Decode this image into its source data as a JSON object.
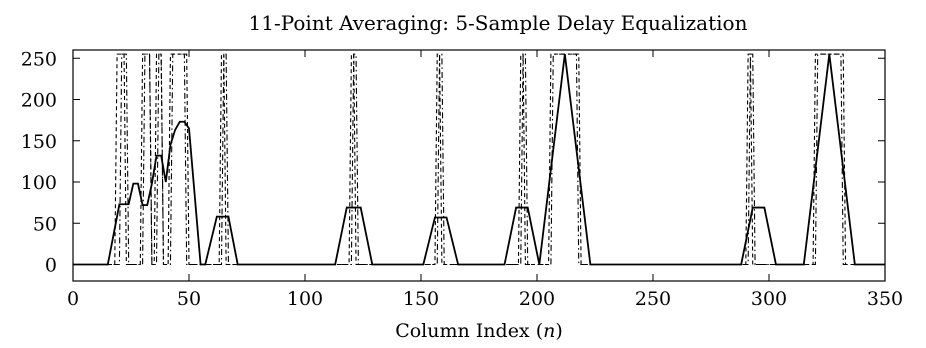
{
  "chart_data": {
    "type": "line",
    "title": "11-Point Averaging: 5-Sample Delay Equalization",
    "xlabel": "Column Index (",
    "xlabel_var": "n",
    "xlabel_close": ")",
    "ylabel": "",
    "xlim": [
      0,
      350
    ],
    "ylim": [
      -20,
      260
    ],
    "xticks": [
      0,
      50,
      100,
      150,
      200,
      250,
      300,
      350
    ],
    "yticks": [
      0,
      50,
      100,
      150,
      200,
      250
    ],
    "grid": false,
    "legend": "none",
    "series": [
      {
        "style": "solid",
        "x": [
          0,
          15,
          20,
          24,
          26,
          28,
          30,
          32,
          34,
          36,
          38,
          40,
          42,
          44,
          46,
          48,
          50,
          55,
          57,
          62,
          67,
          71,
          73,
          113,
          118,
          124,
          129,
          151,
          156,
          161,
          166,
          186,
          191,
          196,
          201,
          212,
          223,
          288,
          293,
          298,
          303,
          315,
          326,
          337,
          350
        ],
        "y": [
          0,
          0,
          73,
          73,
          98,
          98,
          72,
          72,
          98,
          132,
          132,
          100,
          145,
          163,
          173,
          173,
          165,
          0,
          0,
          58,
          58,
          0,
          0,
          0,
          69,
          69,
          0,
          0,
          57,
          57,
          0,
          0,
          69,
          69,
          0,
          255,
          0,
          0,
          69,
          69,
          0,
          0,
          255,
          0,
          0
        ]
      },
      {
        "style": "dashdot",
        "x": [
          0,
          20,
          21,
          23,
          24,
          30,
          31,
          33,
          34,
          36,
          37,
          38,
          39,
          42,
          43,
          48,
          49,
          64,
          65,
          66,
          67,
          120,
          121,
          122,
          123,
          157,
          158,
          159,
          160,
          193,
          194,
          195,
          196,
          206,
          207,
          217,
          218,
          291,
          292,
          293,
          294,
          320,
          321,
          331,
          332,
          350
        ],
        "y": [
          0,
          0,
          255,
          255,
          0,
          0,
          255,
          255,
          0,
          0,
          255,
          255,
          0,
          0,
          255,
          255,
          0,
          0,
          255,
          255,
          0,
          0,
          255,
          255,
          0,
          0,
          255,
          255,
          0,
          0,
          255,
          255,
          0,
          0,
          255,
          255,
          0,
          0,
          255,
          255,
          0,
          0,
          255,
          255,
          0,
          0
        ]
      },
      {
        "style": "dashed",
        "x": [
          0,
          18,
          19,
          22,
          23,
          29,
          30,
          33,
          34,
          35,
          36,
          38,
          39,
          41,
          42,
          49,
          50,
          63,
          64,
          65,
          66,
          119,
          120,
          121,
          122,
          156,
          157,
          158,
          159,
          192,
          193,
          194,
          195,
          205,
          206,
          218,
          219,
          290,
          291,
          292,
          293,
          319,
          320,
          332,
          333,
          350
        ],
        "y": [
          0,
          0,
          255,
          255,
          0,
          0,
          255,
          255,
          0,
          0,
          255,
          255,
          0,
          0,
          255,
          255,
          0,
          0,
          255,
          255,
          0,
          0,
          255,
          255,
          0,
          0,
          255,
          255,
          0,
          0,
          255,
          255,
          0,
          0,
          255,
          255,
          0,
          0,
          255,
          255,
          0,
          0,
          255,
          255,
          0,
          0
        ]
      }
    ]
  }
}
